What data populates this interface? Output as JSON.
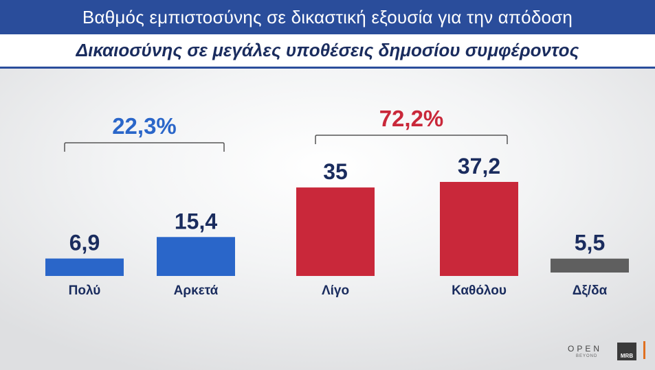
{
  "header": {
    "title": "Βαθμός εμπιστοσύνης σε δικαστική εξουσία για την απόδοση",
    "subtitle": "Δικαιοσύνης σε μεγάλες υποθέσεις δημοσίου συμφέροντος"
  },
  "chart_data": {
    "type": "bar",
    "title": "Βαθμός εμπιστοσύνης σε δικαστική εξουσία για την απόδοση",
    "subtitle": "Δικαιοσύνης σε μεγάλες υποθέσεις δημοσίου συμφέροντος",
    "categories": [
      "Πολύ",
      "Αρκετά",
      "Λίγο",
      "Καθόλου",
      "Δξ/δα"
    ],
    "values": [
      6.9,
      15.4,
      35,
      37.2,
      5.5
    ],
    "value_labels": [
      "6,9",
      "15,4",
      "35",
      "37,2",
      "5,5"
    ],
    "bar_colors": [
      "#2a66c9",
      "#2a66c9",
      "#c9283a",
      "#c9283a",
      "#5f5f5f"
    ],
    "groups": [
      {
        "label": "22,3%",
        "color": "#2a66c9",
        "members": [
          0,
          1
        ]
      },
      {
        "label": "72,2%",
        "color": "#c9283a",
        "members": [
          2,
          3
        ]
      }
    ],
    "ylim": [
      0,
      37.2
    ],
    "grid": false,
    "legend": "none"
  },
  "colors": {
    "header_bg": "#2a4d9b",
    "label_text": "#1a2c5e",
    "blue": "#2a66c9",
    "red": "#c9283a",
    "gray": "#5f5f5f"
  },
  "logos": {
    "open": "OPEN",
    "beyond": "BEYOND",
    "mrb": "MRB"
  }
}
